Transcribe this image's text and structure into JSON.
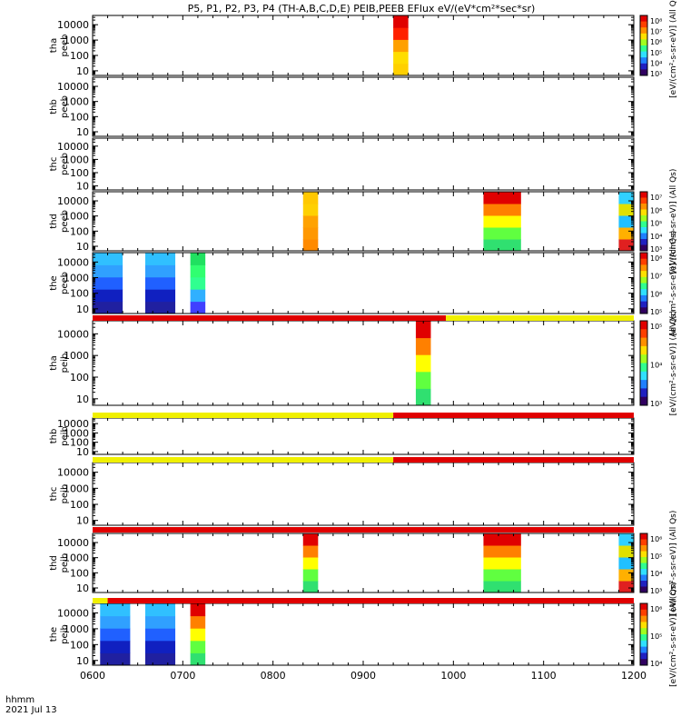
{
  "chart_data": {
    "type": "heatmap",
    "title": "P5, P1, P2, P3, P4 (TH-A,B,C,D,E) PEIB,PEEB EFlux eV/(eV*cm²*sec*sr)",
    "x_label_line1": "hhmm",
    "x_label_line2": "2021 Jul 13",
    "x_range": [
      "06:00",
      "12:00"
    ],
    "x_ticks": [
      "0600",
      "0700",
      "0800",
      "0900",
      "1000",
      "1100",
      "1200"
    ],
    "y_scale": "log",
    "y_range": [
      5,
      40000
    ],
    "y_ticks": [
      "10",
      "100",
      "1000",
      "10000"
    ],
    "panels": [
      {
        "probe": "tha",
        "species": "peeb",
        "bursts": [
          {
            "start": "09:20",
            "end": "09:30",
            "profile": "flat_high"
          }
        ]
      },
      {
        "probe": "thb",
        "species": "peeb",
        "bursts": []
      },
      {
        "probe": "thc",
        "species": "peeb",
        "bursts": []
      },
      {
        "probe": "thd",
        "species": "peeb",
        "bursts": [
          {
            "start": "08:20",
            "end": "08:30",
            "profile": "flat_mid"
          },
          {
            "start": "10:20",
            "end": "10:45",
            "profile": "hot_top"
          },
          {
            "start": "11:50",
            "end": "12:00",
            "profile": "mixed"
          }
        ]
      },
      {
        "probe": "the",
        "species": "peeb",
        "bursts": [
          {
            "start": "06:00",
            "end": "06:20",
            "profile": "cold"
          },
          {
            "start": "06:35",
            "end": "06:55",
            "profile": "cold"
          },
          {
            "start": "07:05",
            "end": "07:15",
            "profile": "cold_green"
          }
        ]
      },
      {
        "probe": "tha",
        "species": "peib",
        "bursts": [
          {
            "start": "09:35",
            "end": "09:45",
            "profile": "hot_top"
          }
        ]
      },
      {
        "probe": "thb",
        "species": "peib",
        "bursts": []
      },
      {
        "probe": "thc",
        "species": "peib",
        "bursts": []
      },
      {
        "probe": "thd",
        "species": "peib",
        "bursts": [
          {
            "start": "08:20",
            "end": "08:30",
            "profile": "hot_top"
          },
          {
            "start": "10:20",
            "end": "10:45",
            "profile": "hot_top"
          },
          {
            "start": "11:50",
            "end": "12:00",
            "profile": "mixed"
          }
        ]
      },
      {
        "probe": "the",
        "species": "peib",
        "bursts": [
          {
            "start": "06:05",
            "end": "06:25",
            "profile": "cold"
          },
          {
            "start": "06:35",
            "end": "06:55",
            "profile": "cold"
          },
          {
            "start": "07:05",
            "end": "07:15",
            "profile": "hot_top"
          }
        ]
      }
    ],
    "mode_bars": [
      {
        "segments": [
          {
            "start": "06:00",
            "end": "09:55",
            "color": "#e00000"
          },
          {
            "start": "09:55",
            "end": "12:00",
            "color": "#f0f000"
          }
        ]
      },
      {
        "segments": [
          {
            "start": "06:00",
            "end": "09:20",
            "color": "#f0f000"
          },
          {
            "start": "09:20",
            "end": "12:00",
            "color": "#e00000"
          }
        ]
      },
      {
        "segments": [
          {
            "start": "06:00",
            "end": "09:20",
            "color": "#f0f000"
          },
          {
            "start": "09:20",
            "end": "12:00",
            "color": "#e00000"
          }
        ]
      },
      {
        "segments": [
          {
            "start": "06:00",
            "end": "12:00",
            "color": "#e00000"
          }
        ]
      },
      {
        "segments": [
          {
            "start": "06:00",
            "end": "06:10",
            "color": "#f0f000"
          },
          {
            "start": "06:10",
            "end": "12:00",
            "color": "#e00000"
          }
        ]
      }
    ],
    "colorbars": [
      {
        "panel": 0,
        "ticks": [
          "10⁸",
          "10⁷",
          "10⁶",
          "10⁵",
          "10⁴",
          "10³"
        ],
        "label": "[eV/(cm²-s-sr-eV)] (All Qs)"
      },
      {
        "panel": 3,
        "ticks": [
          "10⁷",
          "10⁶",
          "10⁵",
          "10⁴",
          "10³"
        ],
        "label": "[eV/(cm²-s-sr-eV)] (All Qs)"
      },
      {
        "panel": 4,
        "ticks": [
          "10⁸",
          "10⁷",
          "10⁶",
          "10⁵"
        ],
        "label": "[eV/(cm²-s-sr-eV)] (All Qs)"
      },
      {
        "panel": 5,
        "ticks": [
          "10⁵",
          "10⁴",
          "10³"
        ],
        "label": "[eV/(cm²-s-sr-eV)] (All Qs)"
      },
      {
        "panel": 8,
        "ticks": [
          "10⁶",
          "10⁵",
          "10⁴",
          "10³"
        ],
        "label": "[eV/(cm²-s-sr-eV)] (All Qs)"
      },
      {
        "panel": 9,
        "ticks": [
          "10⁶",
          "10⁵",
          "10⁴"
        ],
        "label": "[eV/(cm²-s-sr-eV)] (All Qs)"
      }
    ],
    "grid": false,
    "legend": "right (colorbars)"
  }
}
